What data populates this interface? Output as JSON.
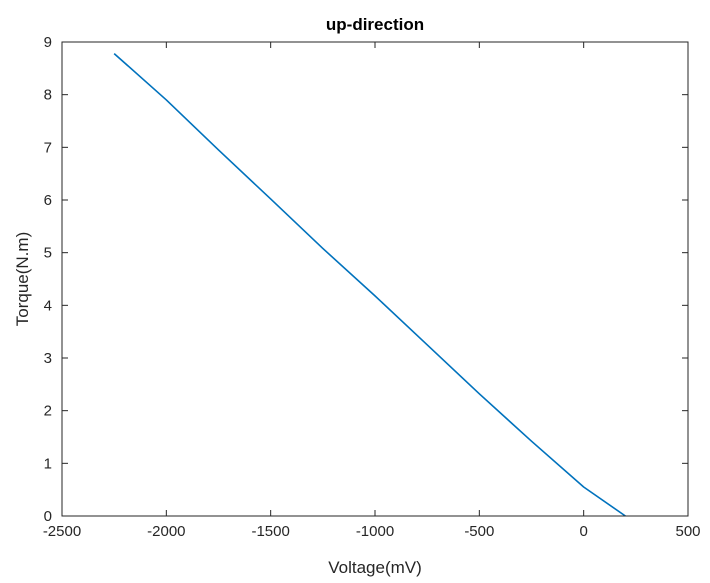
{
  "chart_data": {
    "type": "line",
    "title": "up-direction",
    "xlabel": "Voltage(mV)",
    "ylabel": "Torque(N.m)",
    "xlim": [
      -2500,
      500
    ],
    "ylim": [
      0,
      9
    ],
    "xticks": [
      -2500,
      -2000,
      -1500,
      -1000,
      -500,
      0,
      500
    ],
    "yticks": [
      0,
      1,
      2,
      3,
      4,
      5,
      6,
      7,
      8,
      9
    ],
    "x_tick_labels": [
      "-2500",
      "-2000",
      "-1500",
      "-1000",
      "-500",
      "0",
      "500"
    ],
    "y_tick_labels": [
      "0",
      "1",
      "2",
      "3",
      "4",
      "5",
      "6",
      "7",
      "8",
      "9"
    ],
    "grid": false,
    "series": [
      {
        "color": "#0072BD",
        "x": [
          -2250,
          -2000,
          -1750,
          -1500,
          -1250,
          -1000,
          -750,
          -500,
          -250,
          0,
          200
        ],
        "y": [
          8.78,
          7.9,
          6.95,
          6.02,
          5.08,
          4.18,
          3.25,
          2.32,
          1.42,
          0.55,
          0.0
        ]
      }
    ]
  }
}
